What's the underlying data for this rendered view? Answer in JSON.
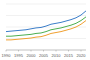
{
  "chart_data": {
    "type": "line",
    "x": [
      1990,
      1992,
      1994,
      1996,
      1998,
      2000,
      2002,
      2004,
      2006,
      2008,
      2010,
      2012,
      2014,
      2016,
      2018,
      2020,
      2022
    ],
    "series": [
      {
        "color": "#3a7dc9",
        "values": [
          40,
          41,
          42,
          43,
          44,
          46,
          48,
          49,
          52,
          56,
          58,
          60,
          63,
          66,
          70,
          76,
          85
        ]
      },
      {
        "color": "#4caf50",
        "values": [
          30,
          30,
          31,
          32,
          33,
          34,
          36,
          37,
          40,
          44,
          46,
          48,
          51,
          54,
          58,
          64,
          72
        ]
      },
      {
        "color": "#f0a030",
        "values": [
          22,
          22,
          23,
          24,
          25,
          26,
          28,
          29,
          32,
          36,
          38,
          40,
          43,
          46,
          50,
          56,
          64
        ]
      }
    ],
    "xlim": [
      1990,
      2022
    ],
    "xticks": [
      1990,
      1995,
      2000,
      2005,
      2010,
      2015,
      2020
    ],
    "ylim": [
      0,
      100
    ],
    "yticks": [
      0,
      25,
      50,
      75,
      100
    ],
    "grid": true,
    "tick_labels": "x"
  }
}
